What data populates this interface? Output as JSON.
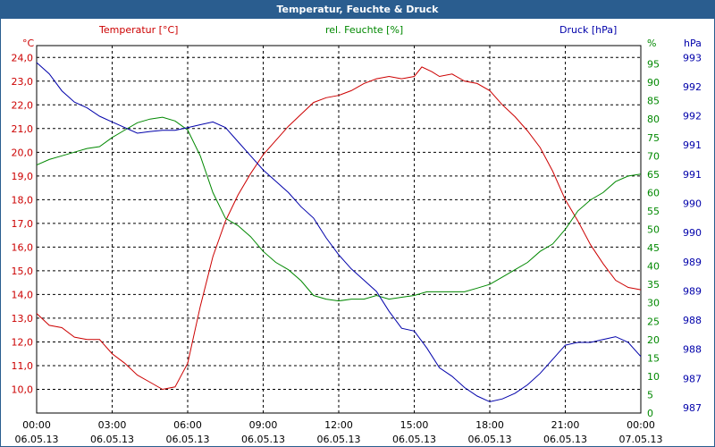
{
  "chart_data": {
    "type": "line",
    "title": "Temperatur, Feuchte & Druck",
    "grid": true,
    "x": {
      "start_hour": 0,
      "end_hour": 24,
      "ticks": [
        {
          "time": "00:00",
          "date": "06.05.13"
        },
        {
          "time": "03:00",
          "date": "06.05.13"
        },
        {
          "time": "06:00",
          "date": "06.05.13"
        },
        {
          "time": "09:00",
          "date": "06.05.13"
        },
        {
          "time": "12:00",
          "date": "06.05.13"
        },
        {
          "time": "15:00",
          "date": "06.05.13"
        },
        {
          "time": "18:00",
          "date": "06.05.13"
        },
        {
          "time": "21:00",
          "date": "06.05.13"
        },
        {
          "time": "00:00",
          "date": "07.05.13"
        }
      ]
    },
    "axes": {
      "temperature": {
        "unit": "°C",
        "ylim": [
          9.0,
          24.5
        ],
        "ticks": [
          "24,0",
          "23,0",
          "22,0",
          "21,0",
          "20,0",
          "19,0",
          "18,0",
          "17,0",
          "16,0",
          "15,0",
          "14,0",
          "13,0",
          "12,0",
          "11,0",
          "10,0"
        ]
      },
      "humidity": {
        "unit": "%",
        "ylim": [
          0,
          100
        ],
        "ticks": [
          "95",
          "90",
          "85",
          "80",
          "75",
          "70",
          "65",
          "60",
          "55",
          "50",
          "45",
          "40",
          "35",
          "30",
          "25",
          "20",
          "15",
          "10",
          "5",
          "0"
        ]
      },
      "pressure": {
        "unit": "hPa",
        "ylim": [
          986.8,
          993.3
        ],
        "ticks": [
          "993",
          "992",
          "992",
          "991",
          "991",
          "990",
          "990",
          "989",
          "989",
          "988",
          "988",
          "987",
          "987"
        ]
      }
    },
    "series": [
      {
        "name": "Temperatur [°C]",
        "axis": "temperature",
        "color": "#cc0000",
        "points": [
          [
            0,
            13.2
          ],
          [
            0.5,
            12.7
          ],
          [
            1,
            12.6
          ],
          [
            1.5,
            12.2
          ],
          [
            2,
            12.1
          ],
          [
            2.5,
            12.1
          ],
          [
            3,
            11.5
          ],
          [
            3.5,
            11.1
          ],
          [
            4,
            10.6
          ],
          [
            4.5,
            10.3
          ],
          [
            5,
            10.0
          ],
          [
            5.5,
            10.1
          ],
          [
            6,
            11.1
          ],
          [
            6.5,
            13.5
          ],
          [
            7,
            15.6
          ],
          [
            7.5,
            17.1
          ],
          [
            8,
            18.2
          ],
          [
            8.5,
            19.1
          ],
          [
            9,
            19.9
          ],
          [
            9.5,
            20.5
          ],
          [
            10,
            21.1
          ],
          [
            10.5,
            21.6
          ],
          [
            11,
            22.1
          ],
          [
            11.5,
            22.3
          ],
          [
            12,
            22.4
          ],
          [
            12.5,
            22.6
          ],
          [
            13,
            22.9
          ],
          [
            13.5,
            23.1
          ],
          [
            14,
            23.2
          ],
          [
            14.5,
            23.1
          ],
          [
            15,
            23.2
          ],
          [
            15.3,
            23.6
          ],
          [
            15.7,
            23.4
          ],
          [
            16,
            23.2
          ],
          [
            16.5,
            23.3
          ],
          [
            17,
            23.0
          ],
          [
            17.5,
            22.9
          ],
          [
            18,
            22.6
          ],
          [
            18.5,
            22.0
          ],
          [
            19,
            21.5
          ],
          [
            19.5,
            20.9
          ],
          [
            20,
            20.2
          ],
          [
            20.5,
            19.2
          ],
          [
            21,
            18.0
          ],
          [
            21.5,
            17.1
          ],
          [
            22,
            16.1
          ],
          [
            22.5,
            15.3
          ],
          [
            23,
            14.6
          ],
          [
            23.5,
            14.3
          ],
          [
            24,
            14.2
          ]
        ]
      },
      {
        "name": "rel. Feuchte [%]",
        "axis": "humidity",
        "color": "#008800",
        "points": [
          [
            0,
            67.5
          ],
          [
            0.5,
            69
          ],
          [
            1,
            70
          ],
          [
            1.5,
            71
          ],
          [
            2,
            72
          ],
          [
            2.5,
            72.5
          ],
          [
            3,
            75
          ],
          [
            3.5,
            77
          ],
          [
            4,
            79
          ],
          [
            4.5,
            80
          ],
          [
            5,
            80.5
          ],
          [
            5.5,
            79.5
          ],
          [
            6,
            77
          ],
          [
            6.5,
            70
          ],
          [
            7,
            60
          ],
          [
            7.5,
            53
          ],
          [
            8,
            51
          ],
          [
            8.5,
            48
          ],
          [
            9,
            44
          ],
          [
            9.5,
            41
          ],
          [
            10,
            39
          ],
          [
            10.5,
            36
          ],
          [
            11,
            32
          ],
          [
            11.5,
            31
          ],
          [
            12,
            30.5
          ],
          [
            12.5,
            31
          ],
          [
            13,
            31
          ],
          [
            13.5,
            32
          ],
          [
            14,
            31
          ],
          [
            14.5,
            31.5
          ],
          [
            15,
            32
          ],
          [
            15.5,
            33
          ],
          [
            16,
            33
          ],
          [
            16.5,
            33
          ],
          [
            17,
            33
          ],
          [
            17.5,
            34
          ],
          [
            18,
            35
          ],
          [
            18.5,
            37
          ],
          [
            19,
            39
          ],
          [
            19.5,
            41
          ],
          [
            20,
            44
          ],
          [
            20.5,
            46
          ],
          [
            21,
            50
          ],
          [
            21.5,
            55
          ],
          [
            22,
            58
          ],
          [
            22.5,
            60
          ],
          [
            23,
            63
          ],
          [
            23.5,
            64.5
          ],
          [
            24,
            65
          ]
        ]
      },
      {
        "name": "Druck [hPa]",
        "axis": "pressure",
        "color": "#0000aa",
        "points": [
          [
            0,
            993.0
          ],
          [
            0.5,
            992.8
          ],
          [
            1,
            992.5
          ],
          [
            1.5,
            992.3
          ],
          [
            2,
            992.2
          ],
          [
            2.5,
            992.05
          ],
          [
            3,
            991.95
          ],
          [
            3.5,
            991.85
          ],
          [
            4,
            991.75
          ],
          [
            4.5,
            991.78
          ],
          [
            5,
            991.8
          ],
          [
            5.5,
            991.8
          ],
          [
            6,
            991.85
          ],
          [
            6.5,
            991.9
          ],
          [
            7,
            991.95
          ],
          [
            7.5,
            991.85
          ],
          [
            8,
            991.6
          ],
          [
            8.5,
            991.35
          ],
          [
            9,
            991.1
          ],
          [
            9.5,
            990.9
          ],
          [
            10,
            990.7
          ],
          [
            10.5,
            990.45
          ],
          [
            11,
            990.25
          ],
          [
            11.5,
            989.9
          ],
          [
            12,
            989.6
          ],
          [
            12.5,
            989.35
          ],
          [
            13,
            989.15
          ],
          [
            13.5,
            988.95
          ],
          [
            14,
            988.6
          ],
          [
            14.5,
            988.3
          ],
          [
            15,
            988.25
          ],
          [
            15.5,
            987.95
          ],
          [
            16,
            987.6
          ],
          [
            16.5,
            987.45
          ],
          [
            17,
            987.25
          ],
          [
            17.5,
            987.1
          ],
          [
            18,
            987.0
          ],
          [
            18.5,
            987.05
          ],
          [
            19,
            987.15
          ],
          [
            19.5,
            987.3
          ],
          [
            20,
            987.5
          ],
          [
            20.5,
            987.75
          ],
          [
            21,
            988.0
          ],
          [
            21.5,
            988.05
          ],
          [
            22,
            988.05
          ],
          [
            22.5,
            988.1
          ],
          [
            23,
            988.15
          ],
          [
            23.5,
            988.05
          ],
          [
            24,
            987.8
          ]
        ]
      }
    ]
  }
}
